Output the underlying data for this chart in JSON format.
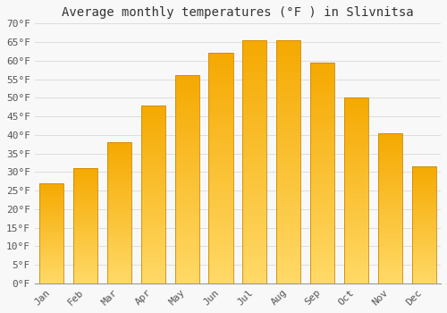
{
  "title": "Average monthly temperatures (°F ) in Slivnitsa",
  "months": [
    "Jan",
    "Feb",
    "Mar",
    "Apr",
    "May",
    "Jun",
    "Jul",
    "Aug",
    "Sep",
    "Oct",
    "Nov",
    "Dec"
  ],
  "values": [
    27,
    31,
    38,
    48,
    56,
    62,
    65.5,
    65.5,
    59.5,
    50,
    40.5,
    31.5
  ],
  "ylim": [
    0,
    70
  ],
  "yticks": [
    0,
    5,
    10,
    15,
    20,
    25,
    30,
    35,
    40,
    45,
    50,
    55,
    60,
    65,
    70
  ],
  "ytick_labels": [
    "0°F",
    "5°F",
    "10°F",
    "15°F",
    "20°F",
    "25°F",
    "30°F",
    "35°F",
    "40°F",
    "45°F",
    "50°F",
    "55°F",
    "60°F",
    "65°F",
    "70°F"
  ],
  "background_color": "#F8F8F8",
  "grid_color": "#DDDDDD",
  "title_fontsize": 10,
  "tick_fontsize": 8,
  "bar_color_bottom": "#FFD966",
  "bar_color_top": "#F5A800",
  "bar_edge_color": "#CC8800",
  "bar_width": 0.72
}
